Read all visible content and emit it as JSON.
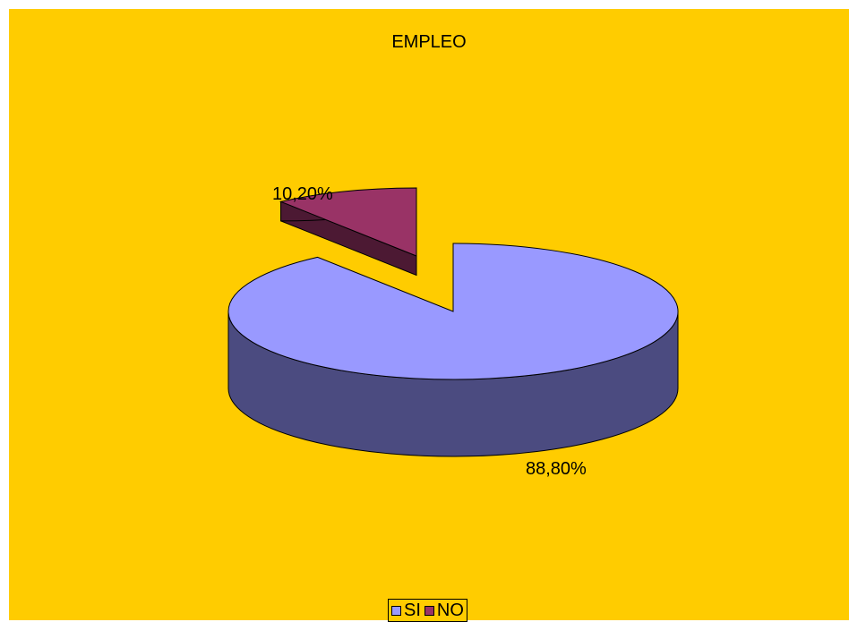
{
  "chart_data": {
    "type": "pie",
    "title": "EMPLEO",
    "categories": [
      "SI",
      "NO"
    ],
    "values": [
      88.8,
      10.2
    ],
    "value_labels": [
      "88,80%",
      "10,20%"
    ],
    "colors": [
      "#9999FF",
      "#993366"
    ],
    "side_colors": [
      "#4B4B80",
      "#4C1933"
    ],
    "background": "#FFCC00",
    "legend_position": "bottom",
    "style": "3d-exploded"
  }
}
